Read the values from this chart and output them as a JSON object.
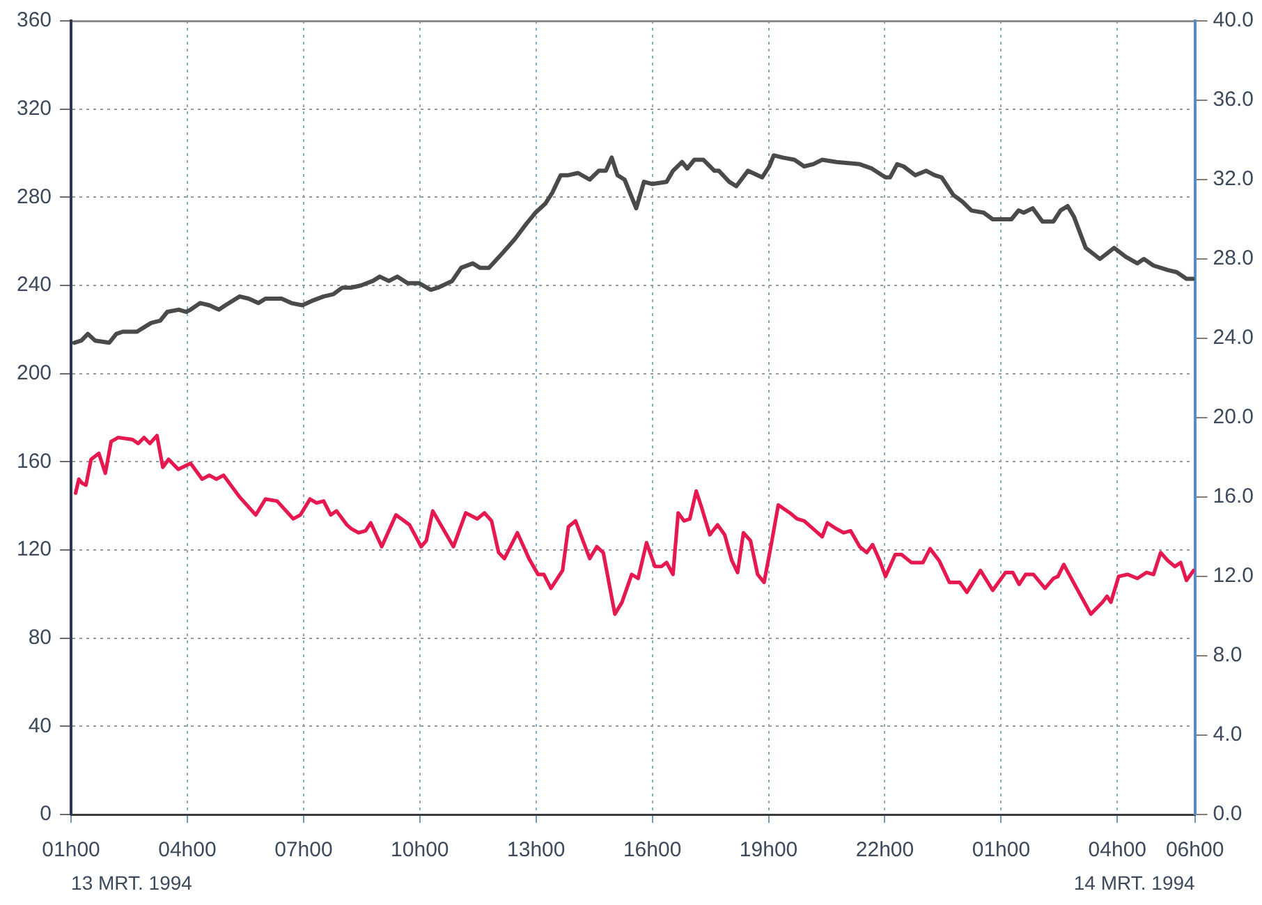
{
  "chart_data": {
    "type": "line",
    "xlim": [
      "1994-03-13T01:00",
      "1994-03-14T06:00"
    ],
    "xticks": [
      {
        "value": "1994-03-13T01:00",
        "label": "01h00"
      },
      {
        "value": "1994-03-13T04:00",
        "label": "04h00"
      },
      {
        "value": "1994-03-13T07:00",
        "label": "07h00"
      },
      {
        "value": "1994-03-13T10:00",
        "label": "10h00"
      },
      {
        "value": "1994-03-13T13:00",
        "label": "13h00"
      },
      {
        "value": "1994-03-13T16:00",
        "label": "16h00"
      },
      {
        "value": "1994-03-13T19:00",
        "label": "19h00"
      },
      {
        "value": "1994-03-13T22:00",
        "label": "22h00"
      },
      {
        "value": "1994-03-14T01:00",
        "label": "01h00"
      },
      {
        "value": "1994-03-14T04:00",
        "label": "04h00"
      },
      {
        "value": "1994-03-14T06:00",
        "label": "06h00"
      }
    ],
    "ylim": [
      0,
      360
    ],
    "yticks": [
      0,
      40,
      80,
      120,
      160,
      200,
      240,
      280,
      320,
      360
    ],
    "y2lim": [
      0,
      40
    ],
    "y2ticks": [
      {
        "value": 0,
        "label": "0.0"
      },
      {
        "value": 4,
        "label": "4.0"
      },
      {
        "value": 8,
        "label": "8.0"
      },
      {
        "value": 12,
        "label": "12.0"
      },
      {
        "value": 16,
        "label": "16.0"
      },
      {
        "value": 20,
        "label": "20.0"
      },
      {
        "value": 24,
        "label": "24.0"
      },
      {
        "value": 28,
        "label": "28.0"
      },
      {
        "value": 32,
        "label": "32.0"
      },
      {
        "value": 36,
        "label": "36.0"
      },
      {
        "value": 40,
        "label": "40.0"
      }
    ],
    "grid": true,
    "annotations": [
      "13 MRT. 1994",
      "14 MRT. 1994"
    ],
    "series": [
      {
        "color": "#4a4a4a",
        "axis": "y",
        "x": [
          "1994-03-13T01:05",
          "1994-03-13T01:16",
          "1994-03-13T01:26",
          "1994-03-13T01:37",
          "1994-03-13T01:59",
          "1994-03-13T02:10",
          "1994-03-13T02:20",
          "1994-03-13T02:42",
          "1994-03-13T02:53",
          "1994-03-13T03:04",
          "1994-03-13T03:18",
          "1994-03-13T03:29",
          "1994-03-13T03:47",
          "1994-03-13T03:58",
          "1994-03-13T04:05",
          "1994-03-13T04:20",
          "1994-03-13T04:34",
          "1994-03-13T04:49",
          "1994-03-13T04:59",
          "1994-03-13T05:21",
          "1994-03-13T05:35",
          "1994-03-13T05:50",
          "1994-03-13T06:01",
          "1994-03-13T06:26",
          "1994-03-13T06:41",
          "1994-03-13T06:58",
          "1994-03-13T07:13",
          "1994-03-13T07:31",
          "1994-03-13T07:46",
          "1994-03-13T08:00",
          "1994-03-13T08:14",
          "1994-03-13T08:29",
          "1994-03-13T08:47",
          "1994-03-13T08:58",
          "1994-03-13T09:12",
          "1994-03-13T09:25",
          "1994-03-13T09:41",
          "1994-03-13T09:59",
          "1994-03-13T10:17",
          "1994-03-13T10:28",
          "1994-03-13T10:50",
          "1994-03-13T11:04",
          "1994-03-13T11:22",
          "1994-03-13T11:33",
          "1994-03-13T11:47",
          "1994-03-13T12:09",
          "1994-03-13T12:27",
          "1994-03-13T12:45",
          "1994-03-13T12:59",
          "1994-03-13T13:14",
          "1994-03-13T13:25",
          "1994-03-13T13:38",
          "1994-03-13T13:50",
          "1994-03-13T14:05",
          "1994-03-13T14:23",
          "1994-03-13T14:37",
          "1994-03-13T14:48",
          "1994-03-13T14:57",
          "1994-03-13T15:06",
          "1994-03-13T15:17",
          "1994-03-13T15:35",
          "1994-03-13T15:47",
          "1994-03-13T16:00",
          "1994-03-13T16:22",
          "1994-03-13T16:32",
          "1994-03-13T16:46",
          "1994-03-13T16:54",
          "1994-03-13T17:05",
          "1994-03-13T17:19",
          "1994-03-13T17:36",
          "1994-03-13T17:43",
          "1994-03-13T17:59",
          "1994-03-13T18:10",
          "1994-03-13T18:28",
          "1994-03-13T18:50",
          "1994-03-13T19:01",
          "1994-03-13T19:08",
          "1994-03-13T19:22",
          "1994-03-13T19:40",
          "1994-03-13T19:55",
          "1994-03-13T20:09",
          "1994-03-13T20:23",
          "1994-03-13T20:45",
          "1994-03-13T21:21",
          "1994-03-13T21:40",
          "1994-03-13T22:01",
          "1994-03-13T22:08",
          "1994-03-13T22:19",
          "1994-03-13T22:29",
          "1994-03-13T22:47",
          "1994-03-13T23:04",
          "1994-03-13T23:17",
          "1994-03-13T23:28",
          "1994-03-13T23:46",
          "1994-03-14T00:00",
          "1994-03-14T00:14",
          "1994-03-14T00:33",
          "1994-03-14T00:47",
          "1994-03-14T01:01",
          "1994-03-14T01:16",
          "1994-03-14T01:27",
          "1994-03-14T01:35",
          "1994-03-14T01:49",
          "1994-03-14T02:04",
          "1994-03-14T02:21",
          "1994-03-14T02:32",
          "1994-03-14T02:43",
          "1994-03-14T02:53",
          "1994-03-14T03:11",
          "1994-03-14T03:33",
          "1994-03-14T03:55",
          "1994-03-14T04:13",
          "1994-03-14T04:31",
          "1994-03-14T04:41",
          "1994-03-14T04:56",
          "1994-03-14T05:18",
          "1994-03-14T05:32",
          "1994-03-14T05:47",
          "1994-03-14T05:57"
        ],
        "values": [
          214,
          215,
          218,
          215,
          214,
          218,
          219,
          219,
          221,
          223,
          224,
          228,
          229,
          228,
          229,
          232,
          231,
          229,
          231,
          235,
          234,
          232,
          234,
          234,
          232,
          231,
          233,
          235,
          236,
          239,
          239,
          240,
          242,
          244,
          242,
          244,
          241,
          241,
          238,
          239,
          242,
          248,
          250,
          248,
          248,
          255,
          261,
          268,
          273,
          277,
          282,
          290,
          290,
          291,
          288,
          292,
          292,
          298,
          290,
          288,
          275,
          287,
          286,
          287,
          292,
          296,
          293,
          297,
          297,
          292,
          292,
          287,
          285,
          292,
          289,
          294,
          299,
          298,
          297,
          294,
          295,
          297,
          296,
          295,
          293,
          289,
          289,
          295,
          294,
          290,
          292,
          290,
          289,
          281,
          278,
          274,
          273,
          270,
          270,
          270,
          274,
          273,
          275,
          269,
          269,
          274,
          276,
          271,
          257,
          252,
          257,
          253,
          250,
          252,
          249,
          247,
          246,
          243,
          243
        ]
      },
      {
        "color": "#e5194f",
        "axis": "y2",
        "x": [
          "1994-03-13T01:07",
          "1994-03-13T01:12",
          "1994-03-13T01:17",
          "1994-03-13T01:23",
          "1994-03-13T01:31",
          "1994-03-13T01:43",
          "1994-03-13T01:53",
          "1994-03-13T02:02",
          "1994-03-13T02:13",
          "1994-03-13T02:35",
          "1994-03-13T02:44",
          "1994-03-13T02:53",
          "1994-03-13T03:02",
          "1994-03-13T03:13",
          "1994-03-13T03:22",
          "1994-03-13T03:31",
          "1994-03-13T03:46",
          "1994-03-13T04:05",
          "1994-03-13T04:23",
          "1994-03-13T04:34",
          "1994-03-13T04:45",
          "1994-03-13T04:56",
          "1994-03-13T05:21",
          "1994-03-13T05:46",
          "1994-03-13T06:01",
          "1994-03-13T06:19",
          "1994-03-13T06:44",
          "1994-03-13T06:55",
          "1994-03-13T07:10",
          "1994-03-13T07:20",
          "1994-03-13T07:31",
          "1994-03-13T07:42",
          "1994-03-13T07:51",
          "1994-03-13T08:07",
          "1994-03-13T08:14",
          "1994-03-13T08:25",
          "1994-03-13T08:36",
          "1994-03-13T08:44",
          "1994-03-13T09:01",
          "1994-03-13T09:23",
          "1994-03-13T09:44",
          "1994-03-13T10:02",
          "1994-03-13T10:10",
          "1994-03-13T10:20",
          "1994-03-13T10:52",
          "1994-03-13T11:11",
          "1994-03-13T11:29",
          "1994-03-13T11:40",
          "1994-03-13T11:51",
          "1994-03-13T12:02",
          "1994-03-13T12:11",
          "1994-03-13T12:31",
          "1994-03-13T12:49",
          "1994-03-13T13:03",
          "1994-03-13T13:12",
          "1994-03-13T13:23",
          "1994-03-13T13:41",
          "1994-03-13T13:50",
          "1994-03-13T14:01",
          "1994-03-13T14:23",
          "1994-03-13T14:34",
          "1994-03-13T14:44",
          "1994-03-13T15:02",
          "1994-03-13T15:13",
          "1994-03-13T15:28",
          "1994-03-13T15:38",
          "1994-03-13T15:51",
          "1994-03-13T16:04",
          "1994-03-13T16:14",
          "1994-03-13T16:22",
          "1994-03-13T16:32",
          "1994-03-13T16:40",
          "1994-03-13T16:49",
          "1994-03-13T16:58",
          "1994-03-13T17:08",
          "1994-03-13T17:16",
          "1994-03-13T17:29",
          "1994-03-13T17:41",
          "1994-03-13T17:52",
          "1994-03-13T18:03",
          "1994-03-13T18:12",
          "1994-03-13T18:21",
          "1994-03-13T18:32",
          "1994-03-13T18:43",
          "1994-03-13T18:53",
          "1994-03-13T19:04",
          "1994-03-13T19:15",
          "1994-03-13T19:33",
          "1994-03-13T19:44",
          "1994-03-13T19:55",
          "1994-03-13T20:09",
          "1994-03-13T20:23",
          "1994-03-13T20:31",
          "1994-03-13T20:45",
          "1994-03-13T20:56",
          "1994-03-13T21:07",
          "1994-03-13T21:21",
          "1994-03-13T21:32",
          "1994-03-13T21:41",
          "1994-03-13T21:52",
          "1994-03-13T22:01",
          "1994-03-13T22:16",
          "1994-03-13T22:26",
          "1994-03-13T22:41",
          "1994-03-13T22:59",
          "1994-03-13T23:10",
          "1994-03-13T23:24",
          "1994-03-13T23:40",
          "1994-03-13T23:56",
          "1994-03-14T00:07",
          "1994-03-14T00:28",
          "1994-03-14T00:47",
          "1994-03-14T01:07",
          "1994-03-14T01:18",
          "1994-03-14T01:28",
          "1994-03-14T01:38",
          "1994-03-14T01:50",
          "1994-03-14T02:08",
          "1994-03-14T02:21",
          "1994-03-14T02:28",
          "1994-03-14T02:37",
          "1994-03-14T02:57",
          "1994-03-14T03:19",
          "1994-03-14T03:37",
          "1994-03-14T03:44",
          "1994-03-14T03:50",
          "1994-03-14T04:02",
          "1994-03-14T04:16",
          "1994-03-14T04:31",
          "1994-03-14T04:45",
          "1994-03-14T04:56",
          "1994-03-14T05:07",
          "1994-03-14T05:18",
          "1994-03-14T05:29",
          "1994-03-14T05:38",
          "1994-03-14T05:47",
          "1994-03-14T05:58"
        ],
        "values": [
          16.2,
          16.9,
          16.7,
          16.6,
          17.9,
          18.2,
          17.2,
          18.8,
          19.0,
          18.9,
          18.7,
          19.0,
          18.7,
          19.1,
          17.5,
          17.9,
          17.4,
          17.7,
          16.9,
          17.1,
          16.9,
          17.1,
          16.0,
          15.1,
          15.9,
          15.8,
          14.9,
          15.1,
          15.9,
          15.7,
          15.8,
          15.1,
          15.3,
          14.6,
          14.4,
          14.2,
          14.3,
          14.7,
          13.5,
          15.1,
          14.6,
          13.5,
          13.8,
          15.3,
          13.5,
          15.2,
          14.9,
          15.2,
          14.8,
          13.2,
          12.9,
          14.2,
          12.9,
          12.1,
          12.1,
          11.4,
          12.3,
          14.5,
          14.8,
          12.9,
          13.5,
          13.2,
          10.1,
          10.7,
          12.1,
          11.9,
          13.7,
          12.5,
          12.5,
          12.7,
          12.1,
          15.2,
          14.8,
          14.9,
          16.3,
          15.5,
          14.1,
          14.6,
          14.1,
          12.8,
          12.2,
          14.2,
          13.8,
          12.1,
          11.7,
          13.6,
          15.6,
          15.2,
          14.9,
          14.8,
          14.4,
          14.0,
          14.7,
          14.4,
          14.2,
          14.3,
          13.5,
          13.2,
          13.6,
          12.8,
          12.0,
          13.1,
          13.1,
          12.7,
          12.7,
          13.4,
          12.8,
          11.7,
          11.7,
          11.2,
          12.3,
          11.3,
          12.2,
          12.2,
          11.6,
          12.1,
          12.1,
          11.4,
          11.9,
          12.0,
          12.6,
          11.4,
          10.1,
          10.7,
          11.0,
          10.7,
          12.0,
          12.1,
          11.9,
          12.2,
          12.1,
          13.2,
          12.8,
          12.5,
          12.7,
          11.8,
          12.3
        ]
      }
    ]
  }
}
